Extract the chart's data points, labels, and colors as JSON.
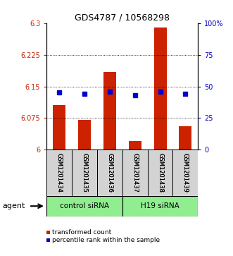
{
  "title": "GDS4787 / 10568298",
  "samples": [
    "GSM1201434",
    "GSM1201435",
    "GSM1201436",
    "GSM1201437",
    "GSM1201438",
    "GSM1201439"
  ],
  "bar_values": [
    6.105,
    6.07,
    6.185,
    6.02,
    6.29,
    6.055
  ],
  "percentile_values": [
    45,
    44,
    46,
    43,
    46,
    44
  ],
  "ymin": 6.0,
  "ymax": 6.3,
  "yticks_left": [
    6,
    6.075,
    6.15,
    6.225,
    6.3
  ],
  "yticks_right": [
    0,
    25,
    50,
    75,
    100
  ],
  "ytick_labels_left": [
    "6",
    "6.075",
    "6.15",
    "6.225",
    "6.3"
  ],
  "ytick_labels_right": [
    "0",
    "25",
    "50",
    "75",
    "100%"
  ],
  "groups": [
    {
      "label": "control siRNA",
      "indices": [
        0,
        1,
        2
      ]
    },
    {
      "label": "H19 siRNA",
      "indices": [
        3,
        4,
        5
      ]
    }
  ],
  "group_bg": "#90ee90",
  "bar_color": "#cc2200",
  "dot_color": "#0000cc",
  "bar_width": 0.5,
  "bg_color": "#ffffff",
  "label_color_left": "#cc2200",
  "label_color_right": "#0000cc",
  "sample_bg": "#d3d3d3",
  "agent_label": "agent",
  "legend_bar_label": "transformed count",
  "legend_dot_label": "percentile rank within the sample"
}
